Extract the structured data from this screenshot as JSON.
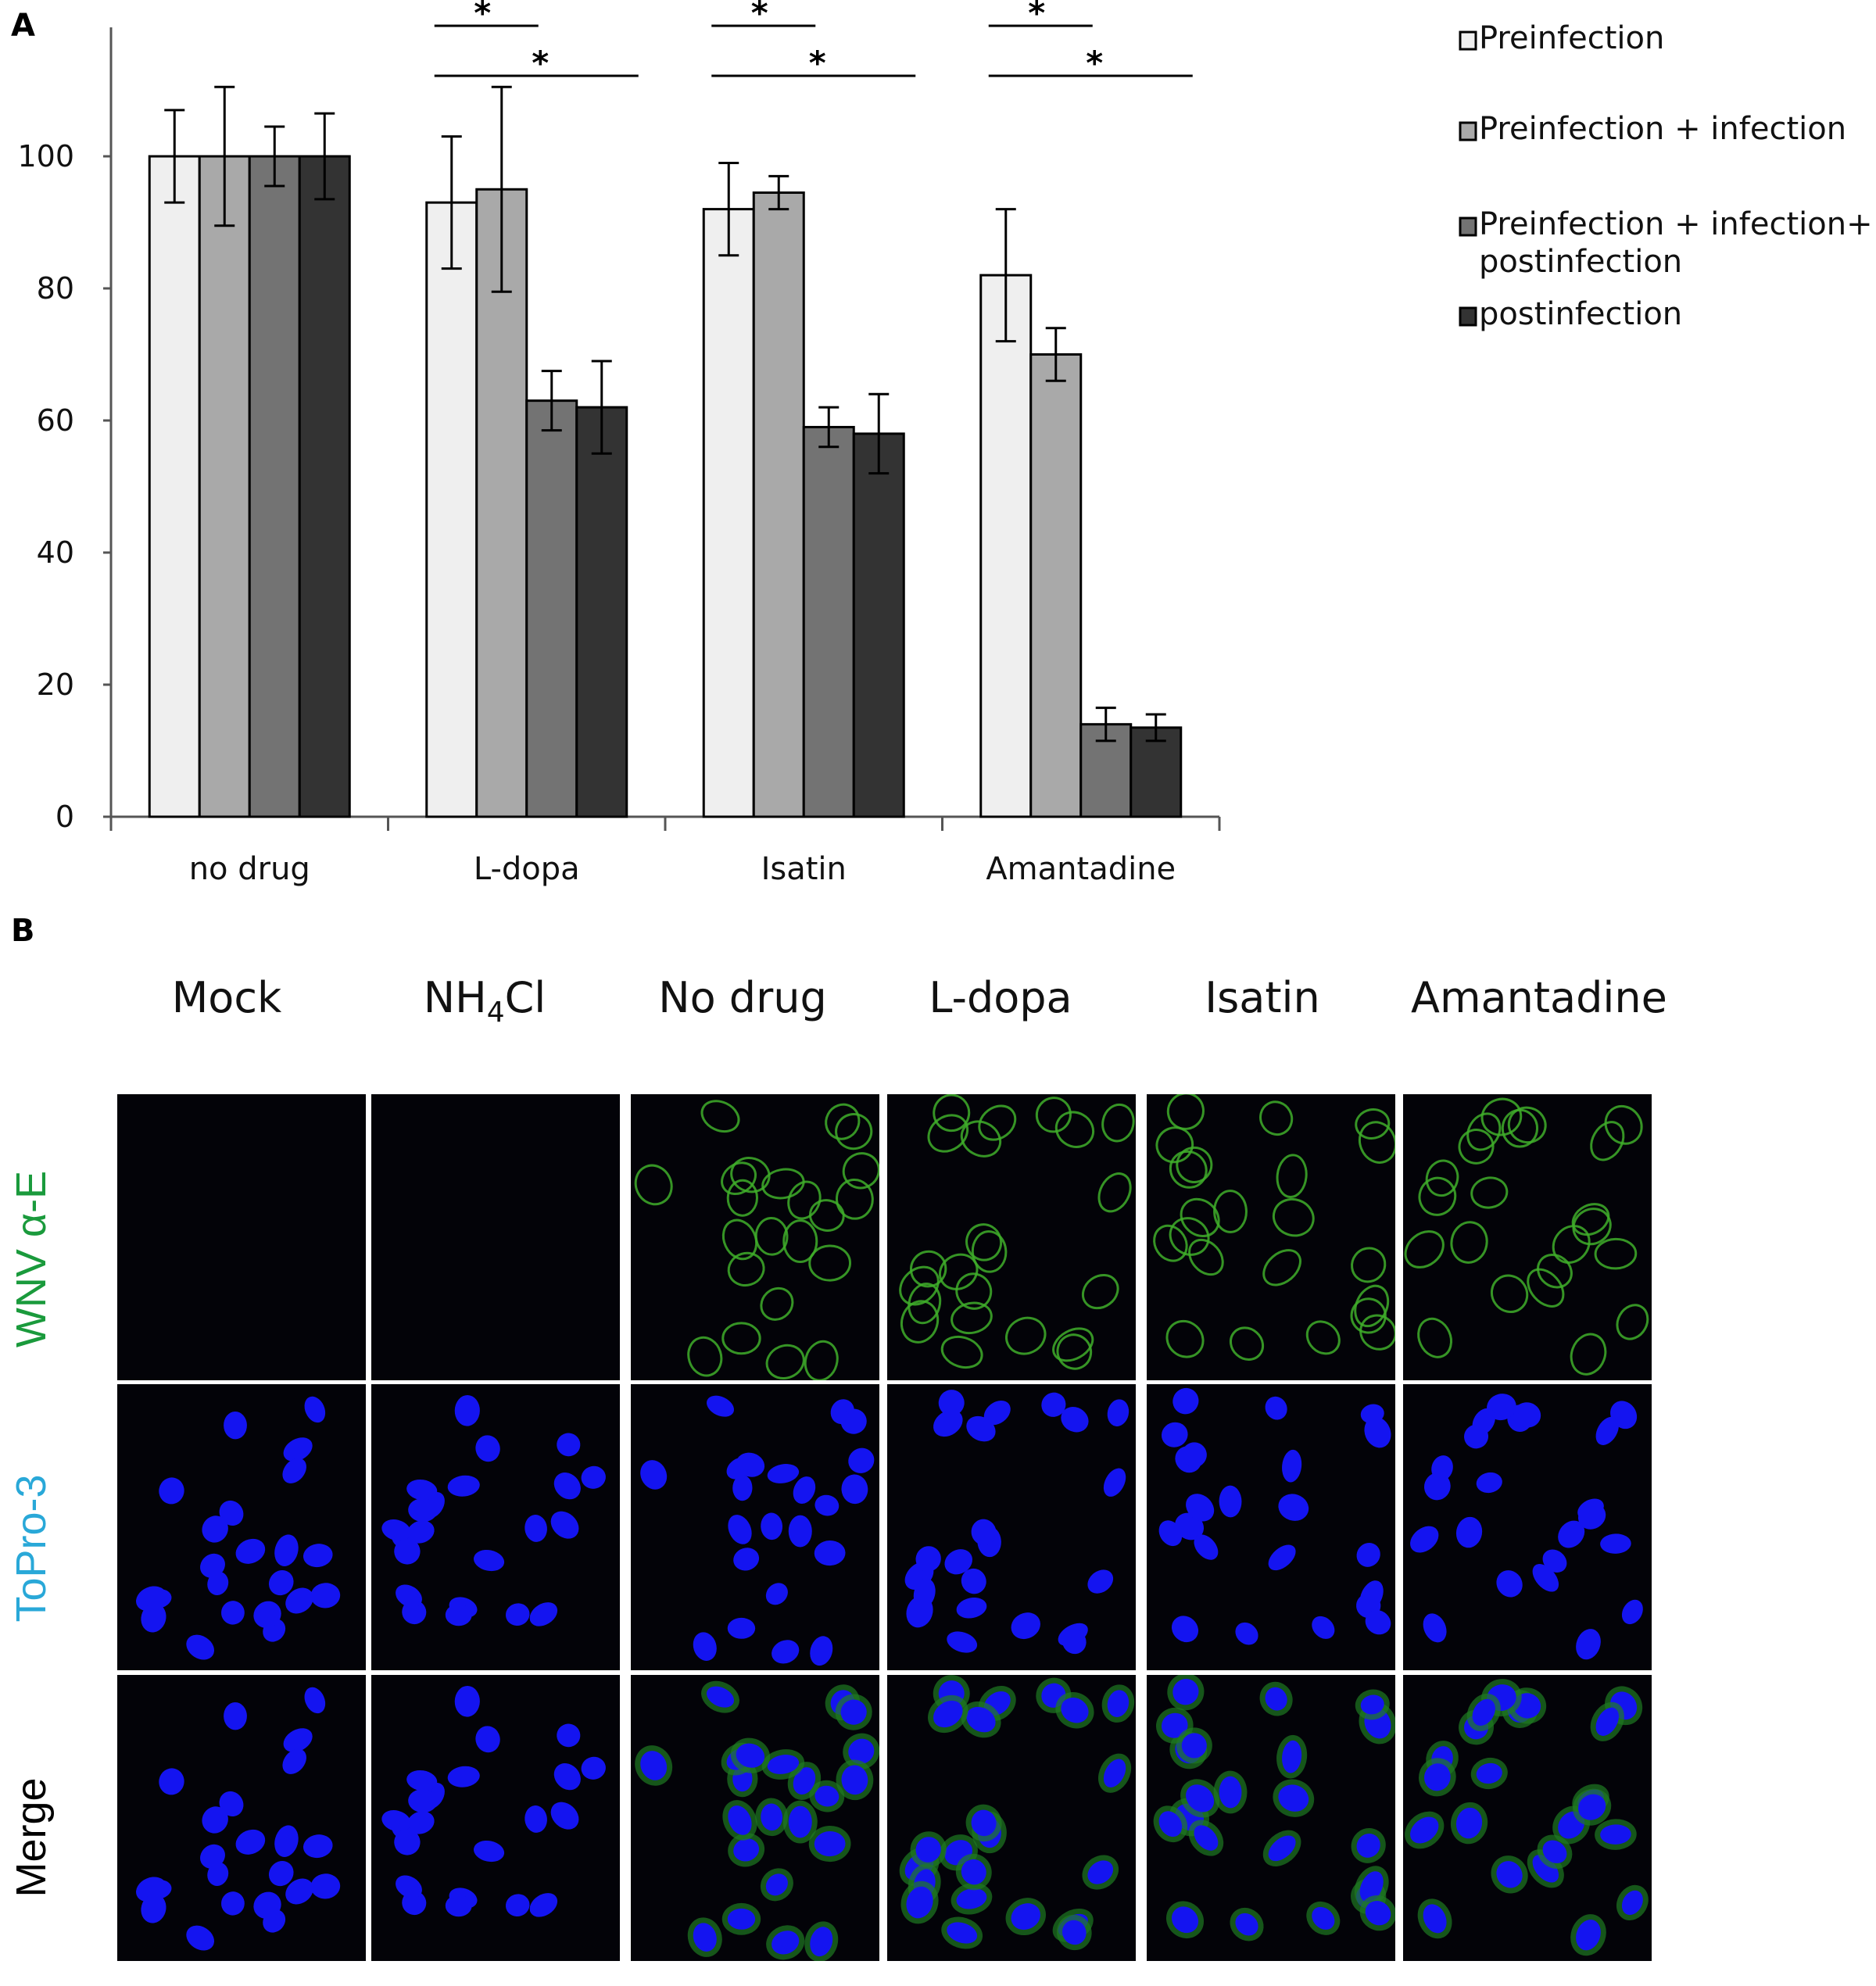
{
  "panel_a": {
    "letter": "A"
  },
  "panel_b": {
    "letter": "B",
    "columns": [
      "Mock",
      "NH4Cl",
      "No drug",
      "L-dopa",
      "Isatin",
      "Amantadine"
    ],
    "rows": [
      {
        "label": "WNV α-E",
        "color": "#1a9a3c",
        "channel": "green"
      },
      {
        "label": "ToPro-3",
        "color": "#29a8d8",
        "channel": "blue"
      },
      {
        "label": "Merge",
        "color": "#000000",
        "channel": "merge"
      }
    ],
    "green_signal": [
      false,
      false,
      true,
      true,
      true,
      true
    ]
  },
  "chart_data": {
    "type": "bar",
    "categories": [
      "no drug",
      "L-dopa",
      "Isatin",
      "Amantadine"
    ],
    "ylim": [
      0,
      120
    ],
    "yticks": [
      0,
      20,
      40,
      60,
      80,
      100
    ],
    "grid": false,
    "legend_position": "top-right",
    "series": [
      {
        "name": "Preinfection",
        "color": "#efefef",
        "values": [
          100,
          93,
          92,
          82
        ],
        "errors": [
          7,
          10,
          7,
          10
        ]
      },
      {
        "name": "Preinfection + infection",
        "color": "#a9a9a9",
        "values": [
          100,
          95,
          94.5,
          70
        ],
        "errors": [
          10.5,
          15.5,
          2.5,
          4
        ]
      },
      {
        "name": "Preinfection + infection+ postinfection",
        "color": "#737373",
        "values": [
          100,
          63,
          59,
          14
        ],
        "errors": [
          4.5,
          4.5,
          3,
          2.5
        ]
      },
      {
        "name": "postinfection",
        "color": "#333333",
        "values": [
          100,
          62,
          58,
          13.5
        ],
        "errors": [
          6.5,
          7,
          6,
          2
        ]
      }
    ],
    "significance": [
      {
        "category": "L-dopa",
        "from_series": 0,
        "to_series": 1,
        "label": "*"
      },
      {
        "category": "L-dopa",
        "from_series": 0,
        "to_series": 3,
        "label": "*"
      },
      {
        "category": "Isatin",
        "from_series": 0,
        "to_series": 1,
        "label": "*"
      },
      {
        "category": "Isatin",
        "from_series": 0,
        "to_series": 3,
        "label": "*"
      },
      {
        "category": "Amantadine",
        "from_series": 0,
        "to_series": 1,
        "label": "*"
      },
      {
        "category": "Amantadine",
        "from_series": 0,
        "to_series": 3,
        "label": "*"
      }
    ]
  }
}
